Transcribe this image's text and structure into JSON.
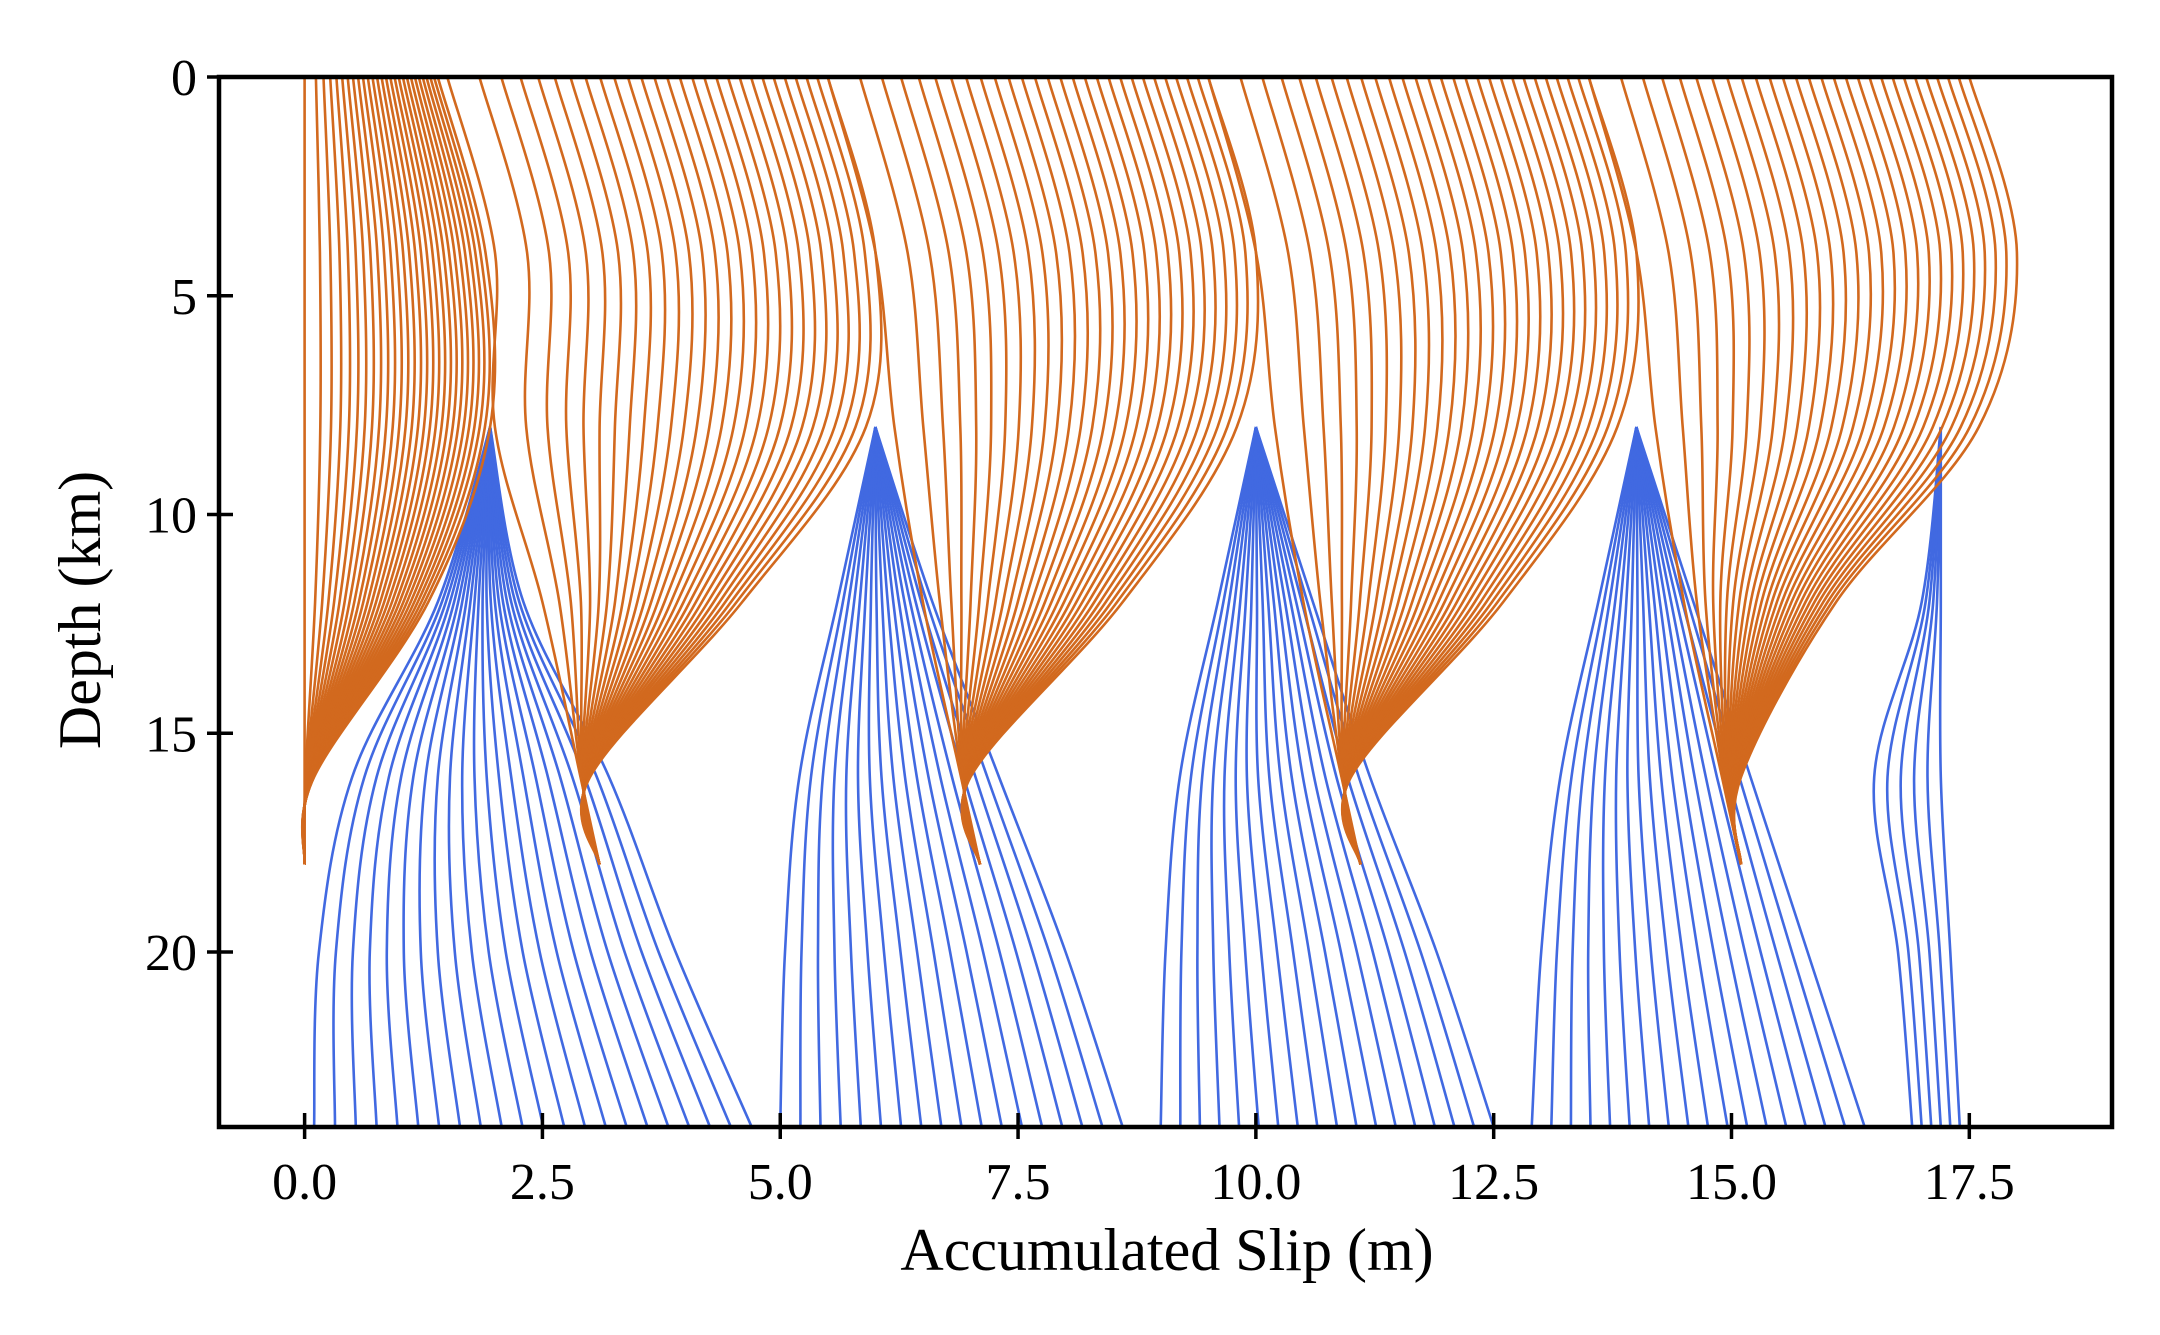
{
  "chart_data": {
    "type": "line",
    "title": "",
    "xlabel": "Accumulated Slip (m)",
    "ylabel": "Depth (km)",
    "xlim": [
      -0.9,
      19.0
    ],
    "ylim": [
      24.0,
      0.0
    ],
    "y_inverted": true,
    "grid": false,
    "legend": "none",
    "x_ticks": [
      0.0,
      2.5,
      5.0,
      7.5,
      10.0,
      12.5,
      15.0,
      17.5
    ],
    "x_tick_labels": [
      "0.0",
      "2.5",
      "5.0",
      "7.5",
      "10.0",
      "12.5",
      "15.0",
      "17.5"
    ],
    "y_ticks": [
      0,
      5,
      10,
      15,
      20
    ],
    "y_tick_labels": [
      "0",
      "5",
      "10",
      "15",
      "20"
    ],
    "colors": {
      "coseismic": "#D2691E",
      "interseismic": "#4169E1",
      "axes": "#000000"
    },
    "series": [
      {
        "kind": "interseismic",
        "color": "#4169E1",
        "profile_depths_km": [
          24.0,
          20.0,
          16.0,
          12.0,
          8.0
        ],
        "cycles": [
          {
            "start_slip_m": [
              0.1,
              0.15,
              0.5,
              1.4,
              1.95
            ],
            "end_slip_m": [
              4.7,
              3.9,
              3.2,
              2.3,
              1.95
            ],
            "n_curves": 22
          },
          {
            "start_slip_m": [
              5.0,
              5.05,
              5.2,
              5.6,
              6.0
            ],
            "end_slip_m": [
              8.6,
              8.0,
              7.3,
              6.6,
              6.0
            ],
            "n_curves": 18
          },
          {
            "start_slip_m": [
              9.0,
              9.05,
              9.2,
              9.6,
              10.0
            ],
            "end_slip_m": [
              12.5,
              11.9,
              11.2,
              10.6,
              10.0
            ],
            "n_curves": 18
          },
          {
            "start_slip_m": [
              12.9,
              13.0,
              13.2,
              13.6,
              14.0
            ],
            "end_slip_m": [
              16.4,
              15.8,
              15.2,
              14.6,
              14.0
            ],
            "n_curves": 18
          },
          {
            "start_slip_m": [
              16.9,
              16.75,
              16.5,
              17.0,
              17.2
            ],
            "end_slip_m": [
              17.4,
              17.3,
              17.2,
              17.2,
              17.2
            ],
            "n_curves": 6
          }
        ]
      },
      {
        "kind": "coseismic",
        "color": "#D2691E",
        "profile_depths_km": [
          0.0,
          4.0,
          8.0,
          12.0,
          16.0,
          18.0
        ],
        "events": [
          {
            "before_slip_m": [
              0.0,
              0.0,
              0.0,
              0.0,
              0.0,
              0.0
            ],
            "after_slip_m": [
              1.4,
              1.9,
              1.95,
              1.3,
              0.1,
              0.0
            ],
            "n_curves": 28
          },
          {
            "before_slip_m": [
              1.5,
              2.0,
              2.0,
              2.5,
              2.9,
              3.1
            ],
            "after_slip_m": [
              5.5,
              6.0,
              5.9,
              4.6,
              3.0,
              3.1
            ],
            "n_curves": 28
          },
          {
            "before_slip_m": [
              5.5,
              6.0,
              6.2,
              6.5,
              6.9,
              7.1
            ],
            "after_slip_m": [
              9.5,
              10.0,
              9.8,
              8.6,
              7.0,
              7.1
            ],
            "n_curves": 28
          },
          {
            "before_slip_m": [
              9.5,
              10.0,
              10.2,
              10.5,
              10.9,
              11.1
            ],
            "after_slip_m": [
              13.5,
              14.0,
              13.8,
              12.6,
              11.0,
              11.1
            ],
            "n_curves": 28
          },
          {
            "before_slip_m": [
              13.5,
              14.0,
              14.2,
              14.5,
              14.9,
              15.1
            ],
            "after_slip_m": [
              17.5,
              18.0,
              17.6,
              16.1,
              15.1,
              15.1
            ],
            "n_curves": 28
          }
        ]
      }
    ]
  }
}
